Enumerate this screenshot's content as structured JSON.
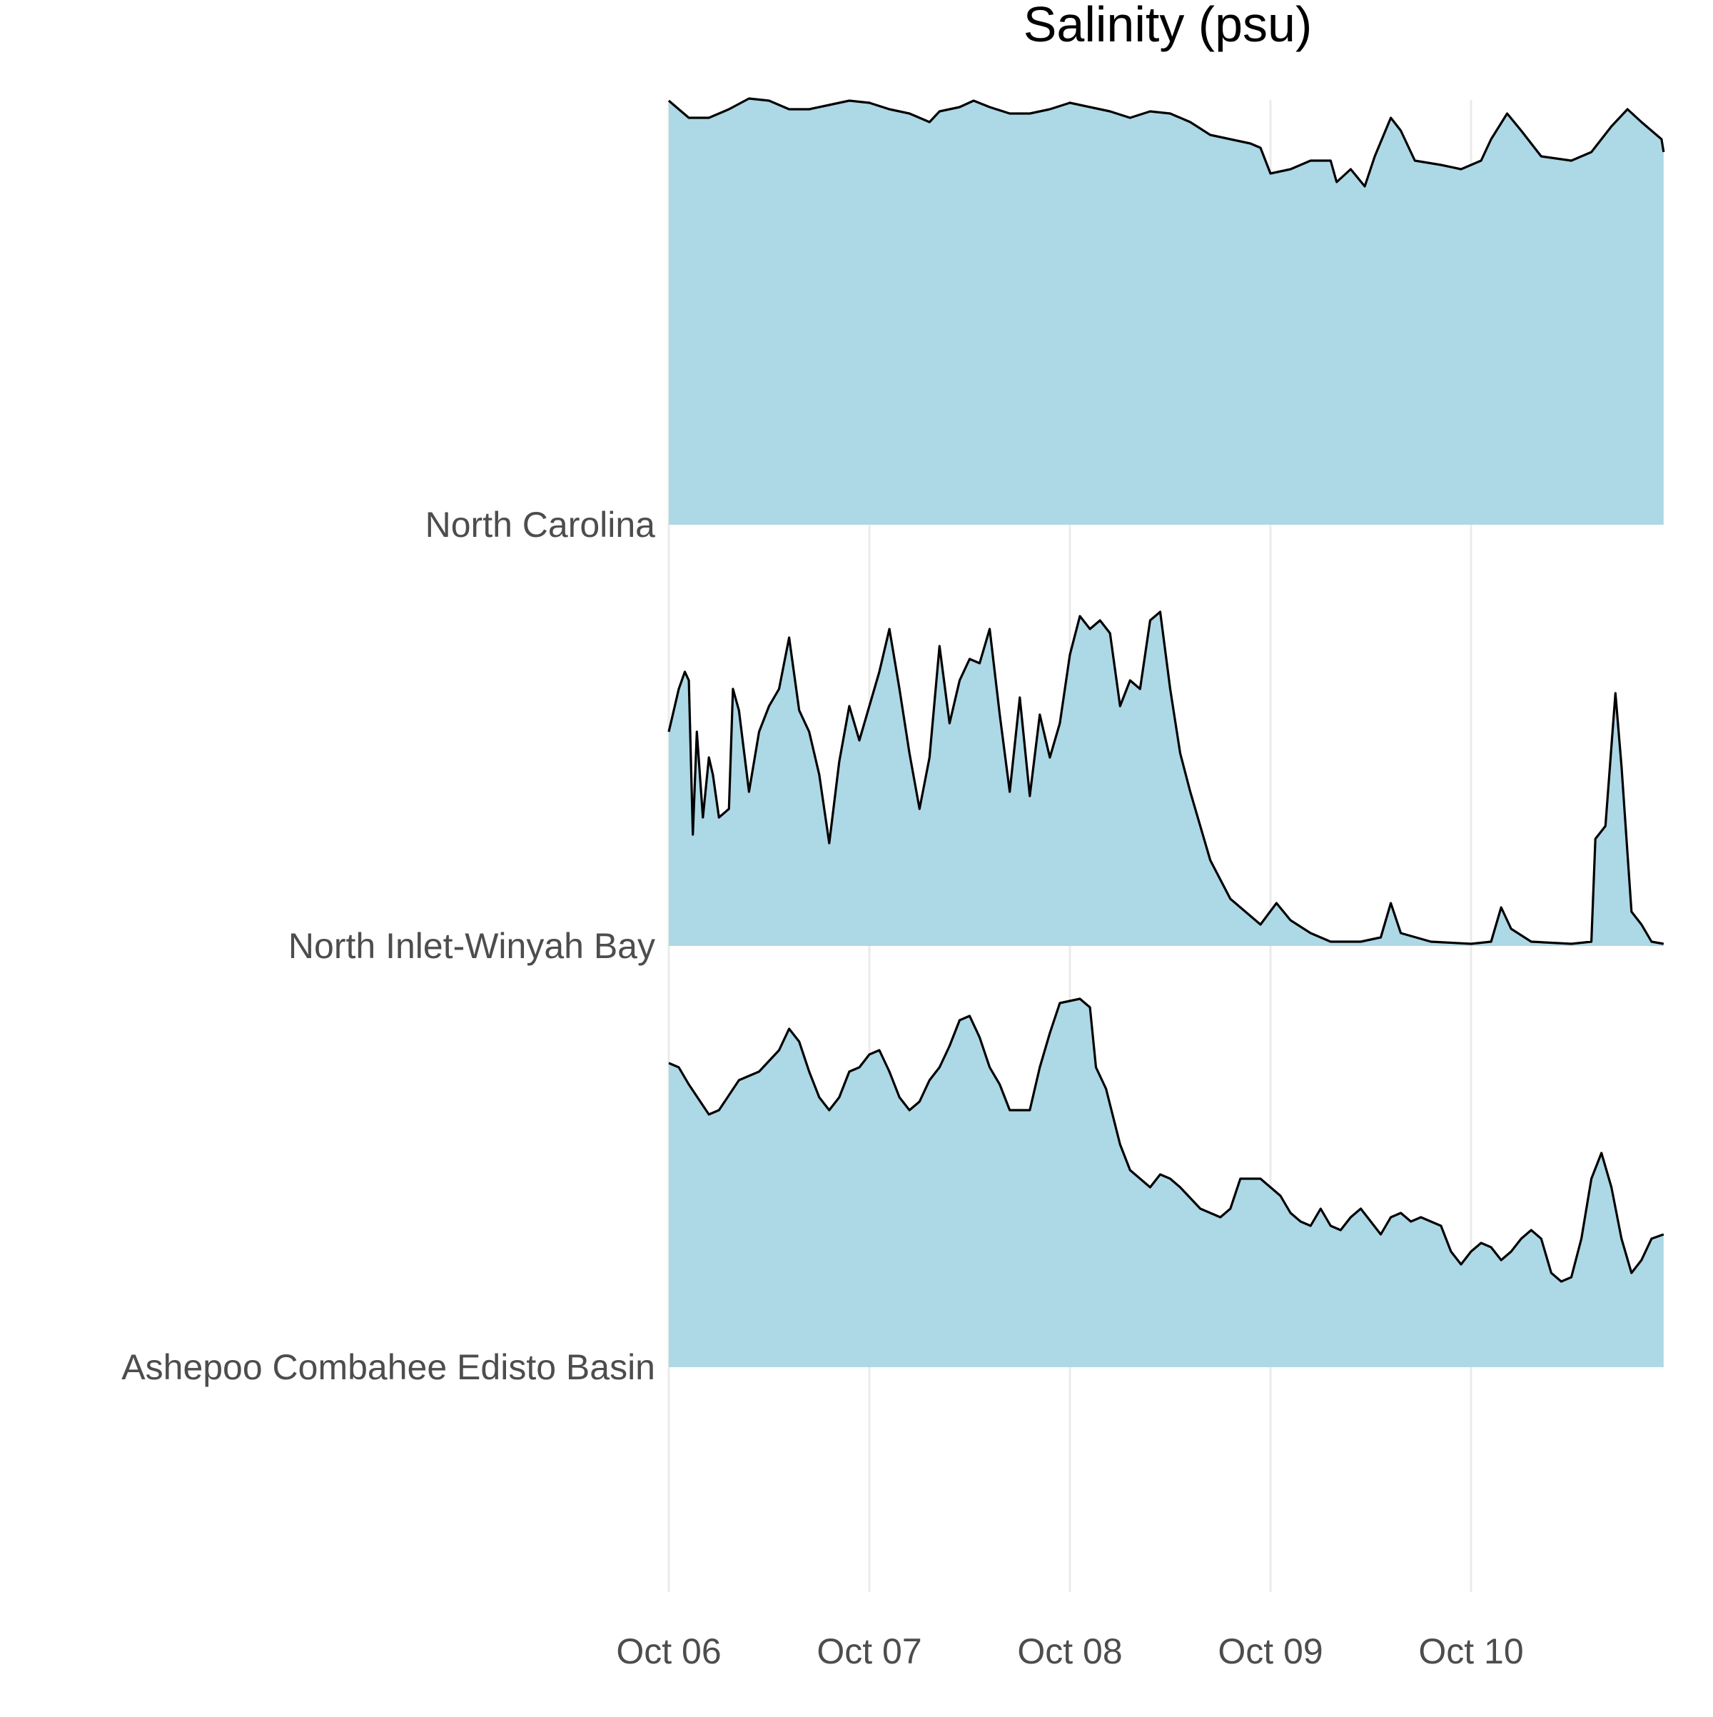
{
  "chart_data": {
    "type": "area",
    "title": "Salinity (psu)",
    "xlabel": "",
    "ylabel": "",
    "grid": true,
    "legend": "none",
    "fill_color": "#add8e6",
    "line_color": "#000000",
    "x_ticks": [
      "Oct 06",
      "Oct 07",
      "Oct 08",
      "Oct 09",
      "Oct 10"
    ],
    "x_tick_values": [
      0,
      1,
      2,
      3,
      4
    ],
    "xlim": [
      0,
      4.96
    ],
    "series": [
      {
        "name": "North Carolina",
        "points": [
          [
            0,
            0.99
          ],
          [
            0.05,
            0.97
          ],
          [
            0.1,
            0.95
          ],
          [
            0.2,
            0.95
          ],
          [
            0.3,
            0.97
          ],
          [
            0.4,
            0.995
          ],
          [
            0.5,
            0.99
          ],
          [
            0.6,
            0.97
          ],
          [
            0.7,
            0.97
          ],
          [
            0.8,
            0.98
          ],
          [
            0.9,
            0.99
          ],
          [
            1.0,
            0.985
          ],
          [
            1.1,
            0.97
          ],
          [
            1.2,
            0.96
          ],
          [
            1.25,
            0.95
          ],
          [
            1.3,
            0.94
          ],
          [
            1.35,
            0.965
          ],
          [
            1.45,
            0.975
          ],
          [
            1.52,
            0.99
          ],
          [
            1.6,
            0.975
          ],
          [
            1.7,
            0.96
          ],
          [
            1.8,
            0.96
          ],
          [
            1.9,
            0.97
          ],
          [
            2.0,
            0.985
          ],
          [
            2.1,
            0.975
          ],
          [
            2.2,
            0.965
          ],
          [
            2.3,
            0.95
          ],
          [
            2.4,
            0.965
          ],
          [
            2.5,
            0.96
          ],
          [
            2.6,
            0.94
          ],
          [
            2.7,
            0.91
          ],
          [
            2.8,
            0.9
          ],
          [
            2.9,
            0.89
          ],
          [
            2.95,
            0.88
          ],
          [
            3.0,
            0.82
          ],
          [
            3.1,
            0.83
          ],
          [
            3.2,
            0.85
          ],
          [
            3.3,
            0.85
          ],
          [
            3.33,
            0.8
          ],
          [
            3.4,
            0.83
          ],
          [
            3.47,
            0.79
          ],
          [
            3.52,
            0.86
          ],
          [
            3.6,
            0.95
          ],
          [
            3.65,
            0.92
          ],
          [
            3.72,
            0.85
          ],
          [
            3.85,
            0.84
          ],
          [
            3.95,
            0.83
          ],
          [
            4.05,
            0.85
          ],
          [
            4.1,
            0.9
          ],
          [
            4.18,
            0.96
          ],
          [
            4.25,
            0.92
          ],
          [
            4.35,
            0.86
          ],
          [
            4.5,
            0.85
          ],
          [
            4.6,
            0.87
          ],
          [
            4.7,
            0.93
          ],
          [
            4.78,
            0.97
          ],
          [
            4.85,
            0.94
          ],
          [
            4.95,
            0.9
          ],
          [
            4.96,
            0.87
          ]
        ]
      },
      {
        "name": "North Inlet-Winyah Bay",
        "points": [
          [
            0,
            0.5
          ],
          [
            0.05,
            0.6
          ],
          [
            0.08,
            0.64
          ],
          [
            0.1,
            0.62
          ],
          [
            0.12,
            0.26
          ],
          [
            0.14,
            0.5
          ],
          [
            0.17,
            0.3
          ],
          [
            0.2,
            0.44
          ],
          [
            0.22,
            0.4
          ],
          [
            0.25,
            0.3
          ],
          [
            0.3,
            0.32
          ],
          [
            0.32,
            0.6
          ],
          [
            0.35,
            0.55
          ],
          [
            0.4,
            0.36
          ],
          [
            0.45,
            0.5
          ],
          [
            0.5,
            0.56
          ],
          [
            0.55,
            0.6
          ],
          [
            0.6,
            0.72
          ],
          [
            0.65,
            0.55
          ],
          [
            0.7,
            0.5
          ],
          [
            0.75,
            0.4
          ],
          [
            0.8,
            0.24
          ],
          [
            0.85,
            0.43
          ],
          [
            0.9,
            0.56
          ],
          [
            0.95,
            0.48
          ],
          [
            1.0,
            0.56
          ],
          [
            1.05,
            0.64
          ],
          [
            1.1,
            0.74
          ],
          [
            1.15,
            0.6
          ],
          [
            1.2,
            0.45
          ],
          [
            1.25,
            0.32
          ],
          [
            1.3,
            0.44
          ],
          [
            1.35,
            0.7
          ],
          [
            1.4,
            0.52
          ],
          [
            1.45,
            0.62
          ],
          [
            1.5,
            0.67
          ],
          [
            1.55,
            0.66
          ],
          [
            1.6,
            0.74
          ],
          [
            1.65,
            0.54
          ],
          [
            1.7,
            0.36
          ],
          [
            1.75,
            0.58
          ],
          [
            1.8,
            0.35
          ],
          [
            1.85,
            0.54
          ],
          [
            1.9,
            0.44
          ],
          [
            1.95,
            0.52
          ],
          [
            2.0,
            0.68
          ],
          [
            2.05,
            0.77
          ],
          [
            2.1,
            0.74
          ],
          [
            2.15,
            0.76
          ],
          [
            2.2,
            0.73
          ],
          [
            2.25,
            0.56
          ],
          [
            2.3,
            0.62
          ],
          [
            2.35,
            0.6
          ],
          [
            2.4,
            0.76
          ],
          [
            2.45,
            0.78
          ],
          [
            2.5,
            0.6
          ],
          [
            2.55,
            0.45
          ],
          [
            2.6,
            0.36
          ],
          [
            2.7,
            0.2
          ],
          [
            2.8,
            0.11
          ],
          [
            2.95,
            0.05
          ],
          [
            3.03,
            0.1
          ],
          [
            3.1,
            0.06
          ],
          [
            3.2,
            0.03
          ],
          [
            3.3,
            0.01
          ],
          [
            3.45,
            0.01
          ],
          [
            3.55,
            0.02
          ],
          [
            3.6,
            0.1
          ],
          [
            3.65,
            0.03
          ],
          [
            3.8,
            0.01
          ],
          [
            4.0,
            0.005
          ],
          [
            4.1,
            0.01
          ],
          [
            4.15,
            0.09
          ],
          [
            4.2,
            0.04
          ],
          [
            4.3,
            0.01
          ],
          [
            4.5,
            0.005
          ],
          [
            4.6,
            0.01
          ],
          [
            4.62,
            0.25
          ],
          [
            4.67,
            0.28
          ],
          [
            4.72,
            0.59
          ],
          [
            4.75,
            0.42
          ],
          [
            4.8,
            0.08
          ],
          [
            4.85,
            0.05
          ],
          [
            4.9,
            0.01
          ],
          [
            4.96,
            0.005
          ]
        ]
      },
      {
        "name": "Ashepoo Combahee Edisto Basin",
        "points": [
          [
            0,
            0.71
          ],
          [
            0.05,
            0.7
          ],
          [
            0.1,
            0.66
          ],
          [
            0.2,
            0.59
          ],
          [
            0.25,
            0.6
          ],
          [
            0.35,
            0.67
          ],
          [
            0.45,
            0.69
          ],
          [
            0.55,
            0.74
          ],
          [
            0.6,
            0.79
          ],
          [
            0.65,
            0.76
          ],
          [
            0.7,
            0.69
          ],
          [
            0.75,
            0.63
          ],
          [
            0.8,
            0.6
          ],
          [
            0.85,
            0.63
          ],
          [
            0.9,
            0.69
          ],
          [
            0.95,
            0.7
          ],
          [
            1.0,
            0.73
          ],
          [
            1.05,
            0.74
          ],
          [
            1.1,
            0.69
          ],
          [
            1.15,
            0.63
          ],
          [
            1.2,
            0.6
          ],
          [
            1.25,
            0.62
          ],
          [
            1.3,
            0.67
          ],
          [
            1.35,
            0.7
          ],
          [
            1.4,
            0.75
          ],
          [
            1.45,
            0.81
          ],
          [
            1.5,
            0.82
          ],
          [
            1.55,
            0.77
          ],
          [
            1.6,
            0.7
          ],
          [
            1.65,
            0.66
          ],
          [
            1.7,
            0.6
          ],
          [
            1.8,
            0.6
          ],
          [
            1.85,
            0.7
          ],
          [
            1.9,
            0.78
          ],
          [
            1.95,
            0.85
          ],
          [
            2.05,
            0.86
          ],
          [
            2.1,
            0.84
          ],
          [
            2.13,
            0.7
          ],
          [
            2.18,
            0.65
          ],
          [
            2.25,
            0.52
          ],
          [
            2.3,
            0.46
          ],
          [
            2.4,
            0.42
          ],
          [
            2.45,
            0.45
          ],
          [
            2.5,
            0.44
          ],
          [
            2.55,
            0.42
          ],
          [
            2.65,
            0.37
          ],
          [
            2.75,
            0.35
          ],
          [
            2.8,
            0.37
          ],
          [
            2.85,
            0.44
          ],
          [
            2.95,
            0.44
          ],
          [
            3.0,
            0.42
          ],
          [
            3.05,
            0.4
          ],
          [
            3.1,
            0.36
          ],
          [
            3.15,
            0.34
          ],
          [
            3.2,
            0.33
          ],
          [
            3.25,
            0.37
          ],
          [
            3.3,
            0.33
          ],
          [
            3.35,
            0.32
          ],
          [
            3.4,
            0.35
          ],
          [
            3.45,
            0.37
          ],
          [
            3.5,
            0.34
          ],
          [
            3.55,
            0.31
          ],
          [
            3.6,
            0.35
          ],
          [
            3.65,
            0.36
          ],
          [
            3.7,
            0.34
          ],
          [
            3.75,
            0.35
          ],
          [
            3.8,
            0.34
          ],
          [
            3.85,
            0.33
          ],
          [
            3.9,
            0.27
          ],
          [
            3.95,
            0.24
          ],
          [
            4.0,
            0.27
          ],
          [
            4.05,
            0.29
          ],
          [
            4.1,
            0.28
          ],
          [
            4.15,
            0.25
          ],
          [
            4.2,
            0.27
          ],
          [
            4.25,
            0.3
          ],
          [
            4.3,
            0.32
          ],
          [
            4.35,
            0.3
          ],
          [
            4.4,
            0.22
          ],
          [
            4.45,
            0.2
          ],
          [
            4.5,
            0.21
          ],
          [
            4.55,
            0.3
          ],
          [
            4.6,
            0.44
          ],
          [
            4.65,
            0.5
          ],
          [
            4.7,
            0.42
          ],
          [
            4.75,
            0.3
          ],
          [
            4.8,
            0.22
          ],
          [
            4.85,
            0.25
          ],
          [
            4.9,
            0.3
          ],
          [
            4.96,
            0.31
          ]
        ]
      }
    ]
  }
}
